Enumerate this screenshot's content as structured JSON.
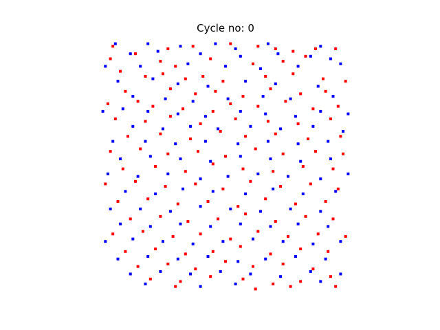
{
  "chart_data": {
    "type": "scatter",
    "title": "Cycle no: 0",
    "xlabel": "",
    "ylabel": "",
    "xlim": [
      0,
      100
    ],
    "ylim": [
      0,
      100
    ],
    "grid": false,
    "axes_visible": false,
    "legend": "none",
    "colors": {
      "red": "#ff0000",
      "blue": "#0000ff"
    },
    "series": [
      {
        "color": "red",
        "points": [
          [
            5,
            98
          ],
          [
            14,
            95
          ],
          [
            27,
            97
          ],
          [
            37,
            98
          ],
          [
            52,
            99
          ],
          [
            63,
            98
          ],
          [
            70,
            97
          ],
          [
            77,
            96
          ],
          [
            86,
            97
          ],
          [
            94,
            97
          ],
          [
            4,
            93
          ],
          [
            24,
            92
          ],
          [
            30,
            90
          ],
          [
            44,
            93
          ],
          [
            61,
            91
          ],
          [
            73,
            92
          ],
          [
            82,
            94
          ],
          [
            8,
            88
          ],
          [
            18,
            86
          ],
          [
            25,
            87
          ],
          [
            34,
            85
          ],
          [
            41,
            86
          ],
          [
            49,
            84
          ],
          [
            66,
            86
          ],
          [
            77,
            87
          ],
          [
            89,
            85
          ],
          [
            98,
            84
          ],
          [
            10,
            80
          ],
          [
            28,
            81
          ],
          [
            38,
            79
          ],
          [
            46,
            80
          ],
          [
            57,
            78
          ],
          [
            68,
            81
          ],
          [
            80,
            79
          ],
          [
            90,
            80
          ],
          [
            3,
            75
          ],
          [
            15,
            76
          ],
          [
            21,
            74
          ],
          [
            33,
            73
          ],
          [
            45,
            72
          ],
          [
            52,
            75
          ],
          [
            63,
            74
          ],
          [
            74,
            76
          ],
          [
            85,
            73
          ],
          [
            95,
            74
          ],
          [
            6,
            69
          ],
          [
            18,
            68
          ],
          [
            28,
            70
          ],
          [
            40,
            67
          ],
          [
            54,
            69
          ],
          [
            67,
            68
          ],
          [
            79,
            67
          ],
          [
            92,
            69
          ],
          [
            11,
            62
          ],
          [
            24,
            63
          ],
          [
            36,
            61
          ],
          [
            48,
            64
          ],
          [
            58,
            62
          ],
          [
            70,
            63
          ],
          [
            83,
            61
          ],
          [
            96,
            62
          ],
          [
            4,
            56
          ],
          [
            16,
            57
          ],
          [
            27,
            55
          ],
          [
            39,
            56
          ],
          [
            50,
            54
          ],
          [
            62,
            57
          ],
          [
            73,
            55
          ],
          [
            86,
            56
          ],
          [
            97,
            55
          ],
          [
            9,
            49
          ],
          [
            22,
            50
          ],
          [
            34,
            48
          ],
          [
            45,
            51
          ],
          [
            57,
            49
          ],
          [
            69,
            48
          ],
          [
            81,
            50
          ],
          [
            93,
            49
          ],
          [
            2,
            43
          ],
          [
            14,
            44
          ],
          [
            26,
            42
          ],
          [
            38,
            43
          ],
          [
            49,
            41
          ],
          [
            60,
            44
          ],
          [
            72,
            42
          ],
          [
            84,
            43
          ],
          [
            95,
            41
          ],
          [
            7,
            36
          ],
          [
            19,
            37
          ],
          [
            31,
            35
          ],
          [
            43,
            36
          ],
          [
            55,
            34
          ],
          [
            66,
            37
          ],
          [
            78,
            35
          ],
          [
            90,
            36
          ],
          [
            12,
            29
          ],
          [
            24,
            30
          ],
          [
            35,
            28
          ],
          [
            47,
            29
          ],
          [
            58,
            31
          ],
          [
            70,
            28
          ],
          [
            82,
            30
          ],
          [
            93,
            29
          ],
          [
            5,
            23
          ],
          [
            17,
            24
          ],
          [
            29,
            22
          ],
          [
            40,
            23
          ],
          [
            52,
            21
          ],
          [
            63,
            24
          ],
          [
            75,
            22
          ],
          [
            87,
            23
          ],
          [
            98,
            22
          ],
          [
            10,
            16
          ],
          [
            22,
            17
          ],
          [
            34,
            15
          ],
          [
            45,
            16
          ],
          [
            56,
            18
          ],
          [
            68,
            15
          ],
          [
            80,
            17
          ],
          [
            91,
            16
          ],
          [
            15,
            10
          ],
          [
            27,
            11
          ],
          [
            38,
            9
          ],
          [
            50,
            12
          ],
          [
            61,
            10
          ],
          [
            73,
            11
          ],
          [
            85,
            9
          ],
          [
            20,
            5
          ],
          [
            32,
            4
          ],
          [
            44,
            6
          ],
          [
            57,
            5
          ],
          [
            69,
            3
          ],
          [
            80,
            4
          ],
          [
            92,
            6
          ],
          [
            30,
            2
          ],
          [
            62,
            1
          ],
          [
            76,
            2
          ],
          [
            94,
            2
          ]
        ]
      },
      {
        "color": "blue",
        "points": [
          [
            6,
            99
          ],
          [
            19,
            99
          ],
          [
            32,
            98
          ],
          [
            46,
            99
          ],
          [
            54,
            97
          ],
          [
            67,
            99
          ],
          [
            88,
            98
          ],
          [
            12,
            95
          ],
          [
            23,
            96
          ],
          [
            40,
            95
          ],
          [
            56,
            94
          ],
          [
            71,
            95
          ],
          [
            84,
            94
          ],
          [
            92,
            93
          ],
          [
            2,
            90
          ],
          [
            16,
            90
          ],
          [
            35,
            91
          ],
          [
            50,
            90
          ],
          [
            64,
            89
          ],
          [
            79,
            90
          ],
          [
            96,
            91
          ],
          [
            7,
            84
          ],
          [
            21,
            85
          ],
          [
            31,
            83
          ],
          [
            43,
            82
          ],
          [
            58,
            84
          ],
          [
            70,
            83
          ],
          [
            87,
            82
          ],
          [
            13,
            78
          ],
          [
            26,
            77
          ],
          [
            37,
            76
          ],
          [
            51,
            77
          ],
          [
            65,
            78
          ],
          [
            76,
            77
          ],
          [
            93,
            78
          ],
          [
            1,
            72
          ],
          [
            9,
            73
          ],
          [
            19,
            72
          ],
          [
            31,
            71
          ],
          [
            42,
            70
          ],
          [
            56,
            72
          ],
          [
            66,
            71
          ],
          [
            78,
            70
          ],
          [
            88,
            72
          ],
          [
            99,
            71
          ],
          [
            13,
            66
          ],
          [
            25,
            65
          ],
          [
            36,
            66
          ],
          [
            47,
            65
          ],
          [
            60,
            66
          ],
          [
            72,
            65
          ],
          [
            85,
            66
          ],
          [
            97,
            64
          ],
          [
            5,
            60
          ],
          [
            18,
            60
          ],
          [
            30,
            59
          ],
          [
            42,
            60
          ],
          [
            55,
            59
          ],
          [
            67,
            60
          ],
          [
            79,
            59
          ],
          [
            91,
            60
          ],
          [
            8,
            53
          ],
          [
            20,
            54
          ],
          [
            32,
            53
          ],
          [
            44,
            52
          ],
          [
            56,
            54
          ],
          [
            68,
            53
          ],
          [
            80,
            52
          ],
          [
            92,
            53
          ],
          [
            3,
            47
          ],
          [
            15,
            46
          ],
          [
            27,
            47
          ],
          [
            40,
            45
          ],
          [
            51,
            46
          ],
          [
            63,
            47
          ],
          [
            75,
            46
          ],
          [
            88,
            45
          ],
          [
            99,
            47
          ],
          [
            10,
            40
          ],
          [
            22,
            39
          ],
          [
            33,
            41
          ],
          [
            45,
            40
          ],
          [
            58,
            39
          ],
          [
            69,
            41
          ],
          [
            81,
            39
          ],
          [
            94,
            40
          ],
          [
            4,
            33
          ],
          [
            16,
            33
          ],
          [
            28,
            32
          ],
          [
            40,
            34
          ],
          [
            52,
            33
          ],
          [
            64,
            32
          ],
          [
            76,
            33
          ],
          [
            88,
            32
          ],
          [
            8,
            27
          ],
          [
            20,
            26
          ],
          [
            32,
            27
          ],
          [
            44,
            26
          ],
          [
            56,
            27
          ],
          [
            68,
            26
          ],
          [
            79,
            27
          ],
          [
            91,
            26
          ],
          [
            2,
            20
          ],
          [
            13,
            21
          ],
          [
            25,
            20
          ],
          [
            37,
            19
          ],
          [
            49,
            20
          ],
          [
            61,
            21
          ],
          [
            73,
            20
          ],
          [
            85,
            19
          ],
          [
            96,
            20
          ],
          [
            7,
            13
          ],
          [
            19,
            14
          ],
          [
            31,
            13
          ],
          [
            43,
            14
          ],
          [
            55,
            12
          ],
          [
            66,
            13
          ],
          [
            78,
            14
          ],
          [
            90,
            13
          ],
          [
            12,
            7
          ],
          [
            24,
            8
          ],
          [
            36,
            7
          ],
          [
            48,
            8
          ],
          [
            60,
            7
          ],
          [
            72,
            6
          ],
          [
            84,
            8
          ],
          [
            96,
            7
          ],
          [
            18,
            3
          ],
          [
            40,
            2
          ],
          [
            54,
            3
          ],
          [
            88,
            4
          ]
        ]
      }
    ]
  }
}
